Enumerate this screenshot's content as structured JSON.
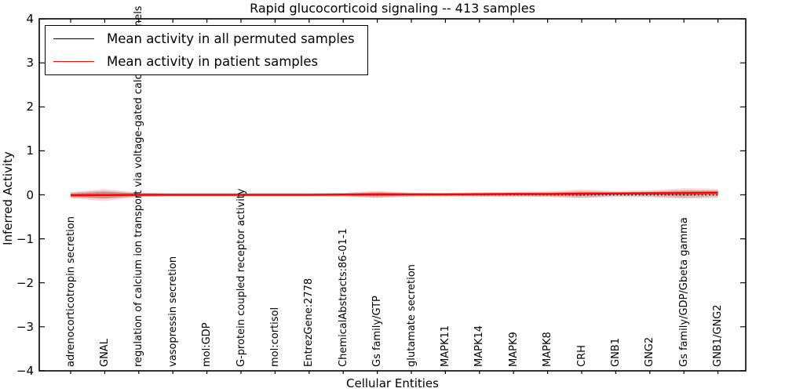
{
  "figure": {
    "background": "#ffffff"
  },
  "chart_data": {
    "type": "line",
    "title": "Rapid glucocorticoid signaling -- 413 samples",
    "xlabel": "Cellular Entities",
    "ylabel": "Inferred Activity",
    "ylim": [
      -4,
      4
    ],
    "xlim_categories": 20,
    "grid": false,
    "legend_position": "upper left",
    "yticks": [
      4,
      3,
      2,
      1,
      0,
      -1,
      -2,
      -3,
      -4
    ],
    "y_tick_labels": [
      "4",
      "3",
      "2",
      "1",
      "0",
      "−1",
      "−2",
      "−3",
      "−4"
    ],
    "categories": [
      "adrenocorticotropin secretion",
      "GNAL",
      "regulation of calcium ion transport via voltage-gated calcium channels",
      "vasopressin secretion",
      "mol:GDP",
      "G-protein coupled receptor activity",
      "mol:cortisol",
      "EntrezGene:2778",
      "ChemicalAbstracts:86-01-1",
      "Gs family/GTP",
      "glutamate secretion",
      "MAPK11",
      "MAPK14",
      "MAPK9",
      "MAPK8",
      "CRH",
      "GNB1",
      "GNG2",
      "Gs family/GDP/Gbeta gamma",
      "GNB1/GNG2"
    ],
    "series": [
      {
        "name": "Mean activity in all permuted samples",
        "color": "#000000",
        "line_style": "dotted",
        "values": [
          0,
          0,
          0,
          0,
          0,
          0,
          0,
          0,
          0,
          0,
          0,
          0,
          0,
          0,
          0,
          0,
          0,
          0,
          0,
          0
        ],
        "spread_half_width": [
          0.055,
          0.085,
          0.045,
          0.04,
          0.04,
          0.04,
          0.04,
          0.04,
          0.045,
          0.06,
          0.045,
          0.04,
          0.045,
          0.05,
          0.05,
          0.065,
          0.05,
          0.055,
          0.085,
          0.07
        ]
      },
      {
        "name": "Mean activity in patient samples",
        "color": "#ff0000",
        "line_style": "solid",
        "values": [
          -0.01,
          -0.005,
          0,
          0,
          0,
          0,
          0,
          0,
          0.005,
          0.01,
          0.01,
          0.01,
          0.015,
          0.02,
          0.02,
          0.025,
          0.03,
          0.035,
          0.04,
          0.05
        ],
        "spread_half_width": [
          0.065,
          0.135,
          0.05,
          0.03,
          0.03,
          0.03,
          0.03,
          0.03,
          0.04,
          0.08,
          0.04,
          0.035,
          0.045,
          0.05,
          0.055,
          0.095,
          0.055,
          0.065,
          0.11,
          0.085
        ]
      }
    ]
  },
  "colors": {
    "permuted_fill": "rgba(145,145,145,0.35)",
    "patient_fill_outer": "rgba(225,50,50,0.20)",
    "patient_fill_inner": "rgba(225,50,50,0.38)",
    "axis": "#000000"
  }
}
